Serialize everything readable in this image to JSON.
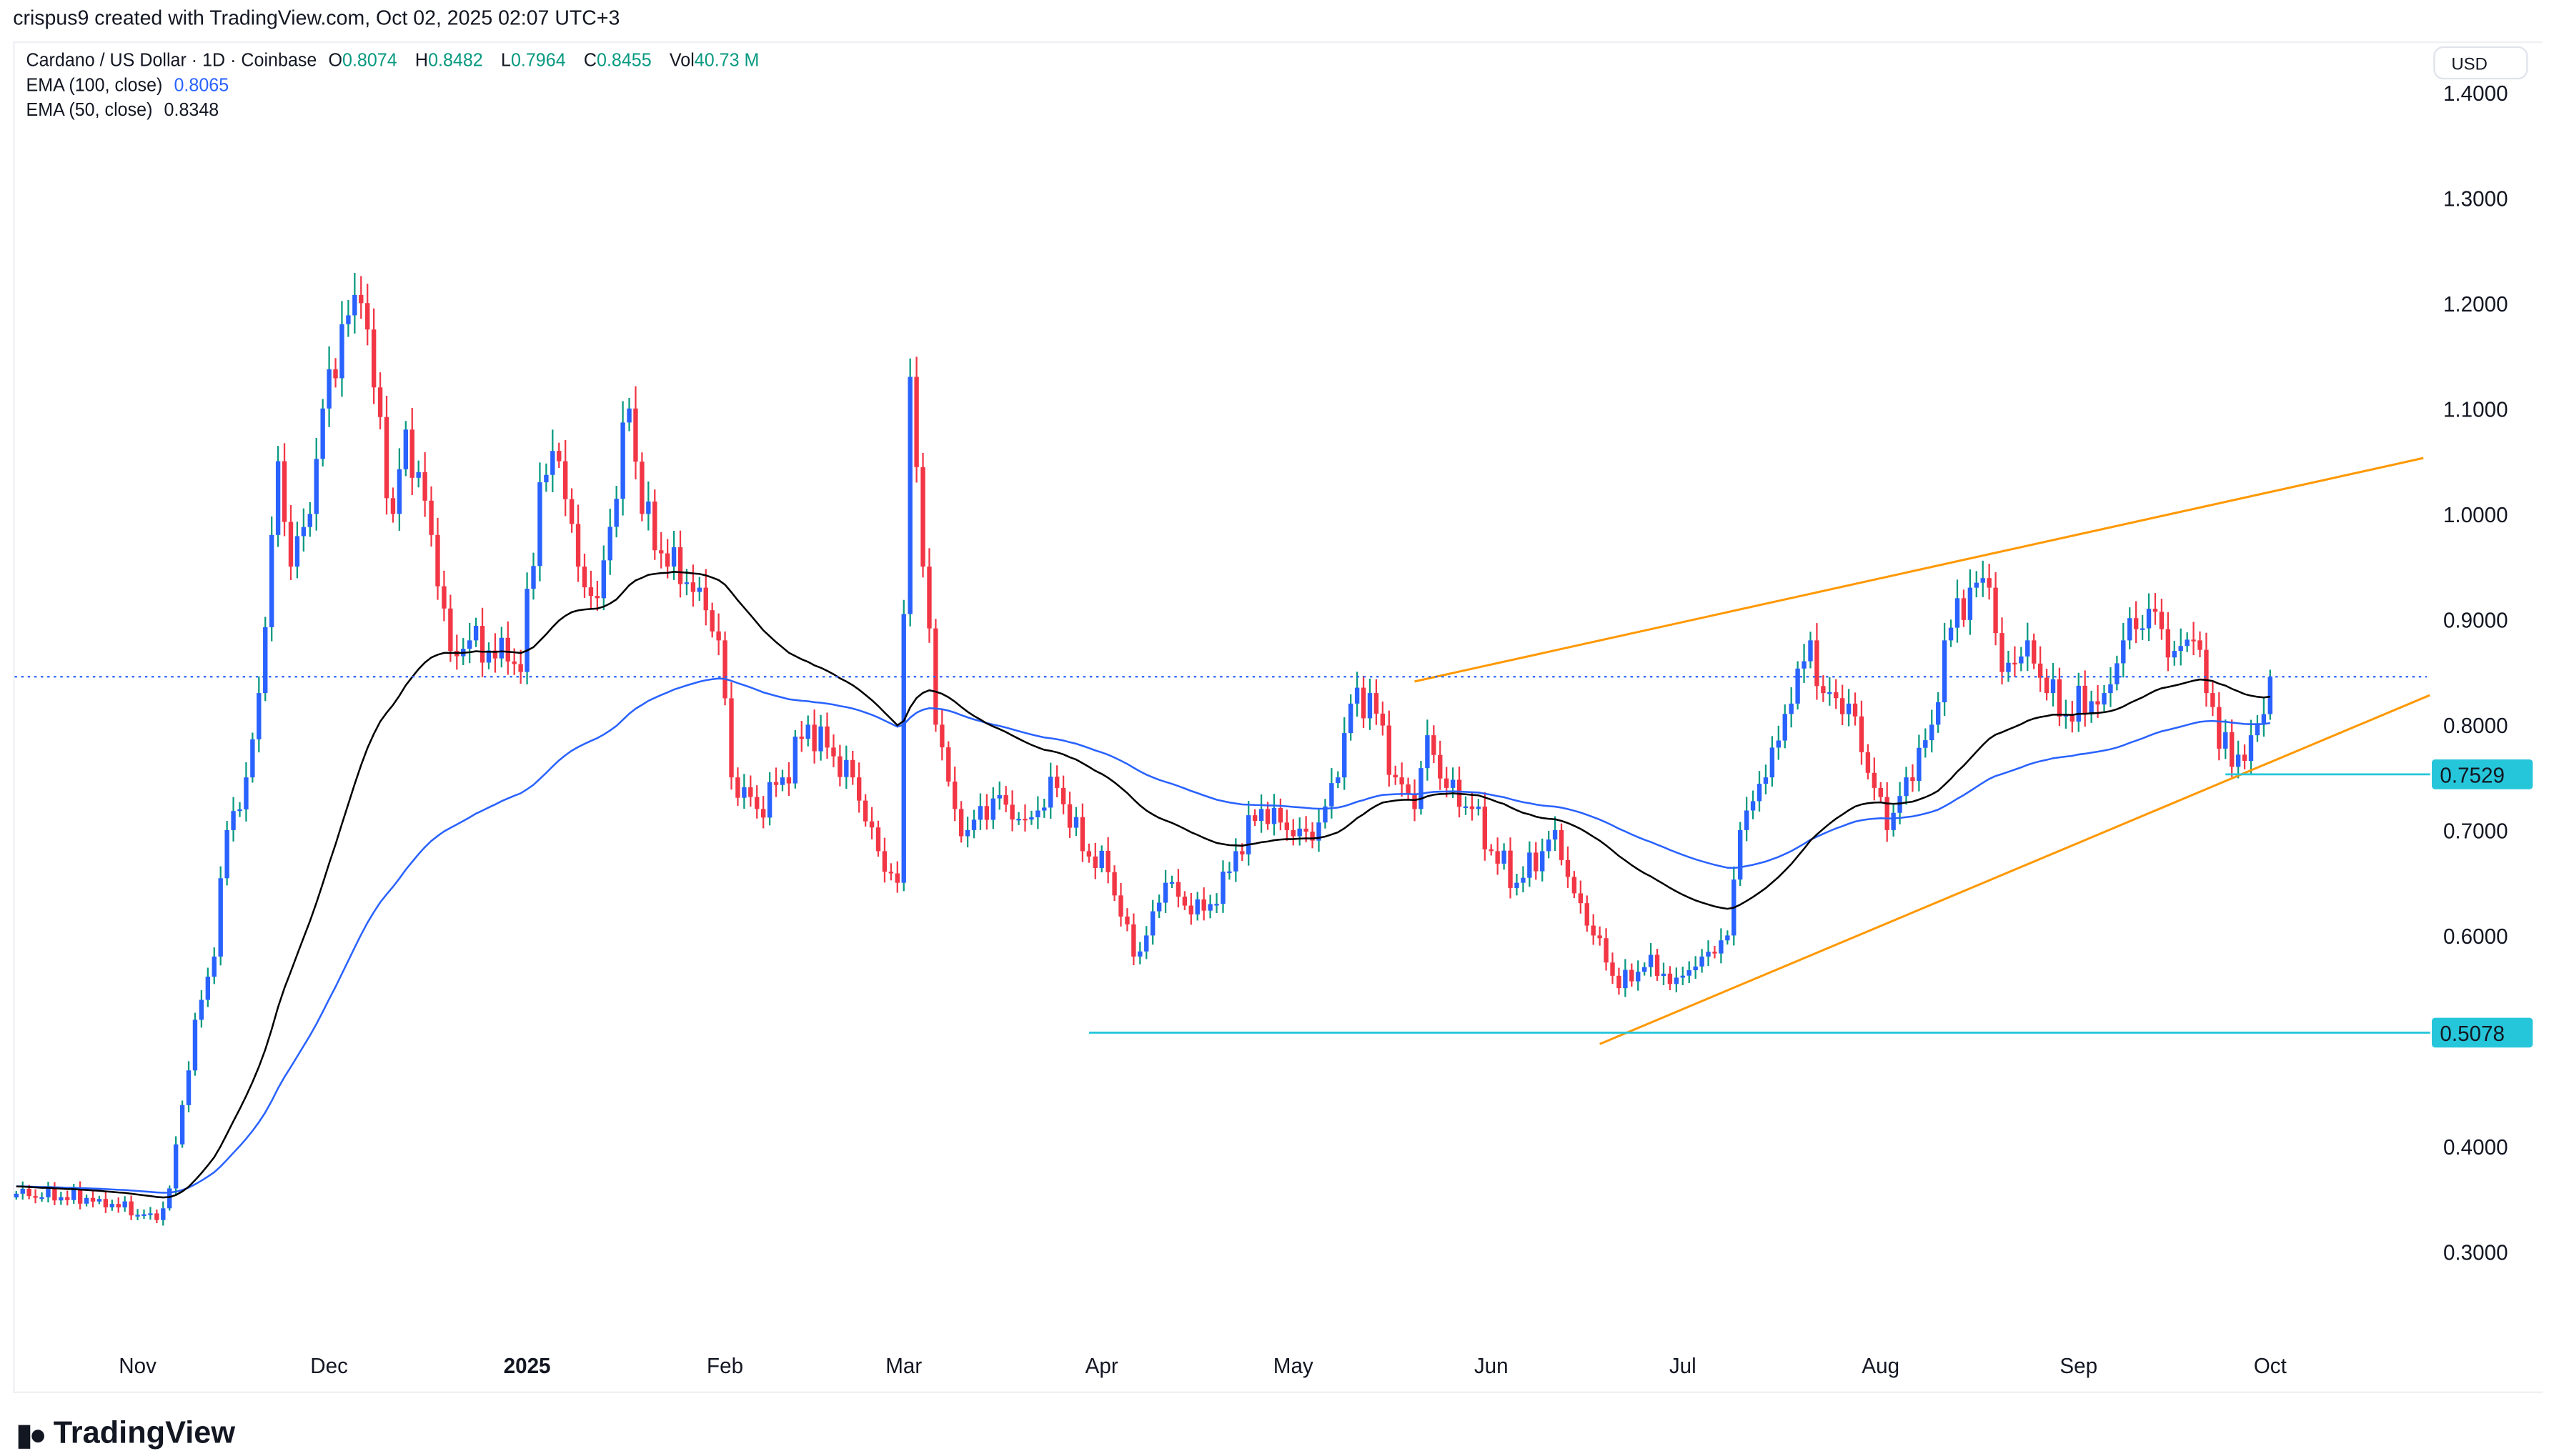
{
  "caption": "crispus9 created with TradingView.com, Oct 02, 2025 02:07 UTC+3",
  "legend": {
    "symbol": "Cardano / US Dollar · 1D · Coinbase",
    "o_label": "O",
    "o": "0.8074",
    "h_label": "H",
    "h": "0.8482",
    "l_label": "L",
    "l": "0.7964",
    "c_label": "C",
    "c": "0.8455",
    "vol_label": "Vol",
    "vol": "40.73 M",
    "ema100_label": "EMA (100, close)",
    "ema100": "0.8065",
    "ema50_label": "EMA (50, close)",
    "ema50": "0.8348"
  },
  "currency": "USD",
  "brand": "TradingView",
  "colors": {
    "up_body": "#2962ff",
    "up_wick": "#089981",
    "down": "#f23645",
    "ema50": "#000000",
    "ema100": "#2962ff",
    "trend": "#ff9800",
    "level": "#26c6da"
  },
  "chart_data": {
    "type": "candlestick",
    "title": "Cardano / US Dollar · 1D · Coinbase",
    "start_date": "2024-10-13",
    "ylim": [
      0.2,
      1.45
    ],
    "y_ticks": [
      "1.4000",
      "1.3000",
      "1.2000",
      "1.1000",
      "1.0000",
      "0.9000",
      "0.8000",
      "0.7000",
      "0.6000",
      "0.4000",
      "0.3000"
    ],
    "x_ticks": [
      {
        "label": "Nov",
        "day": 19
      },
      {
        "label": "Dec",
        "day": 49
      },
      {
        "label": "2025",
        "day": 80,
        "bold": true
      },
      {
        "label": "Feb",
        "day": 111
      },
      {
        "label": "Mar",
        "day": 139
      },
      {
        "label": "Apr",
        "day": 170
      },
      {
        "label": "May",
        "day": 200
      },
      {
        "label": "Jun",
        "day": 231
      },
      {
        "label": "Jul",
        "day": 261
      },
      {
        "label": "Aug",
        "day": 292
      },
      {
        "label": "Sep",
        "day": 323
      },
      {
        "label": "Oct",
        "day": 353
      }
    ],
    "close_path_day_price": [
      [
        0,
        0.355
      ],
      [
        13,
        0.35
      ],
      [
        22,
        0.33
      ],
      [
        24,
        0.36
      ],
      [
        28,
        0.52
      ],
      [
        31,
        0.58
      ],
      [
        33,
        0.7
      ],
      [
        36,
        0.75
      ],
      [
        38,
        0.83
      ],
      [
        40,
        0.98
      ],
      [
        41,
        1.05
      ],
      [
        43,
        0.95
      ],
      [
        46,
        1.0
      ],
      [
        48,
        1.1
      ],
      [
        51,
        1.18
      ],
      [
        54,
        1.2
      ],
      [
        56,
        1.12
      ],
      [
        59,
        1.0
      ],
      [
        61,
        1.08
      ],
      [
        65,
        0.98
      ],
      [
        68,
        0.87
      ],
      [
        71,
        0.88
      ],
      [
        77,
        0.86
      ],
      [
        79,
        0.85
      ],
      [
        82,
        1.03
      ],
      [
        85,
        1.05
      ],
      [
        88,
        0.95
      ],
      [
        91,
        0.92
      ],
      [
        96,
        1.1
      ],
      [
        98,
        1.0
      ],
      [
        102,
        0.95
      ],
      [
        107,
        0.93
      ],
      [
        110,
        0.88
      ],
      [
        112,
        0.75
      ],
      [
        116,
        0.72
      ],
      [
        120,
        0.75
      ],
      [
        124,
        0.8
      ],
      [
        128,
        0.77
      ],
      [
        131,
        0.75
      ],
      [
        135,
        0.68
      ],
      [
        138,
        0.65
      ],
      [
        140,
        1.13
      ],
      [
        142,
        0.95
      ],
      [
        144,
        0.8
      ],
      [
        147,
        0.72
      ],
      [
        149,
        0.7
      ],
      [
        153,
        0.73
      ],
      [
        158,
        0.71
      ],
      [
        163,
        0.74
      ],
      [
        167,
        0.68
      ],
      [
        171,
        0.66
      ],
      [
        175,
        0.58
      ],
      [
        177,
        0.6
      ],
      [
        180,
        0.65
      ],
      [
        184,
        0.62
      ],
      [
        188,
        0.63
      ],
      [
        191,
        0.68
      ],
      [
        195,
        0.72
      ],
      [
        199,
        0.7
      ],
      [
        203,
        0.69
      ],
      [
        207,
        0.75
      ],
      [
        209,
        0.82
      ],
      [
        212,
        0.83
      ],
      [
        216,
        0.75
      ],
      [
        219,
        0.72
      ],
      [
        221,
        0.79
      ],
      [
        224,
        0.74
      ],
      [
        228,
        0.72
      ],
      [
        231,
        0.68
      ],
      [
        235,
        0.65
      ],
      [
        239,
        0.68
      ],
      [
        241,
        0.7
      ],
      [
        244,
        0.64
      ],
      [
        247,
        0.6
      ],
      [
        251,
        0.55
      ],
      [
        255,
        0.57
      ],
      [
        260,
        0.56
      ],
      [
        264,
        0.58
      ],
      [
        268,
        0.6
      ],
      [
        270,
        0.7
      ],
      [
        274,
        0.75
      ],
      [
        278,
        0.82
      ],
      [
        281,
        0.88
      ],
      [
        283,
        0.83
      ],
      [
        287,
        0.82
      ],
      [
        291,
        0.74
      ],
      [
        293,
        0.7
      ],
      [
        296,
        0.75
      ],
      [
        300,
        0.8
      ],
      [
        302,
        0.88
      ],
      [
        306,
        0.93
      ],
      [
        309,
        0.93
      ],
      [
        311,
        0.85
      ],
      [
        315,
        0.88
      ],
      [
        318,
        0.83
      ],
      [
        321,
        0.81
      ],
      [
        327,
        0.83
      ],
      [
        330,
        0.88
      ],
      [
        334,
        0.91
      ],
      [
        338,
        0.87
      ],
      [
        341,
        0.88
      ],
      [
        343,
        0.83
      ],
      [
        347,
        0.76
      ],
      [
        350,
        0.79
      ],
      [
        352,
        0.81
      ],
      [
        353,
        0.8455
      ]
    ],
    "last_price": 0.8455,
    "ema_periods": [
      50,
      100
    ],
    "levels": [
      {
        "label": "0.7529",
        "value": 0.7529,
        "from_day": 346
      },
      {
        "label": "0.5078",
        "value": 0.5078,
        "from_day": 168
      }
    ],
    "trendlines": [
      {
        "name": "upper",
        "from": [
          219,
          0.841
        ],
        "to": [
          377,
          1.053
        ]
      },
      {
        "name": "lower",
        "from": [
          248,
          0.497
        ],
        "to": [
          378,
          0.828
        ]
      }
    ]
  }
}
